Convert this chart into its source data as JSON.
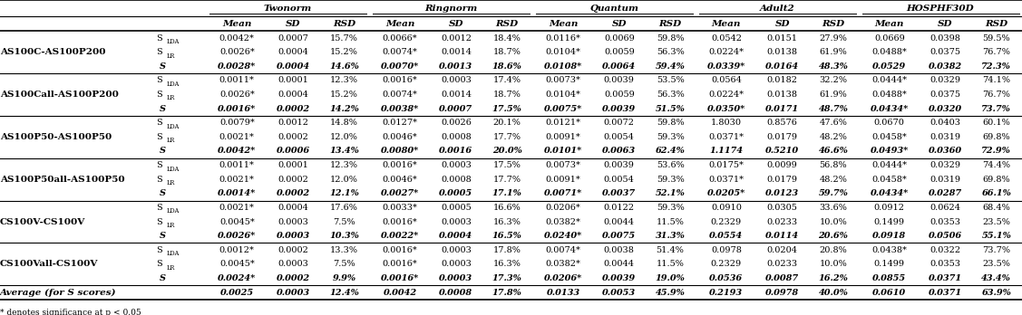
{
  "col_groups": [
    "Twonorm",
    "Ringnorm",
    "Quantum",
    "Adult2",
    "HOSPHF30D"
  ],
  "sub_cols": [
    "Mean",
    "SD",
    "RSD"
  ],
  "row_groups": [
    "AS100C-AS100P200",
    "AS100Call-AS100P200",
    "AS100P50-AS100P50",
    "AS100P50all-AS100P50",
    "CS100V-CS100V",
    "CS100Vall-CS100V"
  ],
  "data": {
    "AS100C-AS100P200": {
      "S_LDA": [
        "0.0042*",
        "0.0007",
        "15.7%",
        "0.0066*",
        "0.0012",
        "18.4%",
        "0.0116*",
        "0.0069",
        "59.8%",
        "0.0542",
        "0.0151",
        "27.9%",
        "0.0669",
        "0.0398",
        "59.5%"
      ],
      "S_LR": [
        "0.0026*",
        "0.0004",
        "15.2%",
        "0.0074*",
        "0.0014",
        "18.7%",
        "0.0104*",
        "0.0059",
        "56.3%",
        "0.0224*",
        "0.0138",
        "61.9%",
        "0.0488*",
        "0.0375",
        "76.7%"
      ],
      "S": [
        "0.0028*",
        "0.0004",
        "14.6%",
        "0.0070*",
        "0.0013",
        "18.6%",
        "0.0108*",
        "0.0064",
        "59.4%",
        "0.0339*",
        "0.0164",
        "48.3%",
        "0.0529",
        "0.0382",
        "72.3%"
      ]
    },
    "AS100Call-AS100P200": {
      "S_LDA": [
        "0.0011*",
        "0.0001",
        "12.3%",
        "0.0016*",
        "0.0003",
        "17.4%",
        "0.0073*",
        "0.0039",
        "53.5%",
        "0.0564",
        "0.0182",
        "32.2%",
        "0.0444*",
        "0.0329",
        "74.1%"
      ],
      "S_LR": [
        "0.0026*",
        "0.0004",
        "15.2%",
        "0.0074*",
        "0.0014",
        "18.7%",
        "0.0104*",
        "0.0059",
        "56.3%",
        "0.0224*",
        "0.0138",
        "61.9%",
        "0.0488*",
        "0.0375",
        "76.7%"
      ],
      "S": [
        "0.0016*",
        "0.0002",
        "14.2%",
        "0.0038*",
        "0.0007",
        "17.5%",
        "0.0075*",
        "0.0039",
        "51.5%",
        "0.0350*",
        "0.0171",
        "48.7%",
        "0.0434*",
        "0.0320",
        "73.7%"
      ]
    },
    "AS100P50-AS100P50": {
      "S_LDA": [
        "0.0079*",
        "0.0012",
        "14.8%",
        "0.0127*",
        "0.0026",
        "20.1%",
        "0.0121*",
        "0.0072",
        "59.8%",
        "1.8030",
        "0.8576",
        "47.6%",
        "0.0670",
        "0.0403",
        "60.1%"
      ],
      "S_LR": [
        "0.0021*",
        "0.0002",
        "12.0%",
        "0.0046*",
        "0.0008",
        "17.7%",
        "0.0091*",
        "0.0054",
        "59.3%",
        "0.0371*",
        "0.0179",
        "48.2%",
        "0.0458*",
        "0.0319",
        "69.8%"
      ],
      "S": [
        "0.0042*",
        "0.0006",
        "13.4%",
        "0.0080*",
        "0.0016",
        "20.0%",
        "0.0101*",
        "0.0063",
        "62.4%",
        "1.1174",
        "0.5210",
        "46.6%",
        "0.0493*",
        "0.0360",
        "72.9%"
      ]
    },
    "AS100P50all-AS100P50": {
      "S_LDA": [
        "0.0011*",
        "0.0001",
        "12.3%",
        "0.0016*",
        "0.0003",
        "17.5%",
        "0.0073*",
        "0.0039",
        "53.6%",
        "0.0175*",
        "0.0099",
        "56.8%",
        "0.0444*",
        "0.0329",
        "74.4%"
      ],
      "S_LR": [
        "0.0021*",
        "0.0002",
        "12.0%",
        "0.0046*",
        "0.0008",
        "17.7%",
        "0.0091*",
        "0.0054",
        "59.3%",
        "0.0371*",
        "0.0179",
        "48.2%",
        "0.0458*",
        "0.0319",
        "69.8%"
      ],
      "S": [
        "0.0014*",
        "0.0002",
        "12.1%",
        "0.0027*",
        "0.0005",
        "17.1%",
        "0.0071*",
        "0.0037",
        "52.1%",
        "0.0205*",
        "0.0123",
        "59.7%",
        "0.0434*",
        "0.0287",
        "66.1%"
      ]
    },
    "CS100V-CS100V": {
      "S_LDA": [
        "0.0021*",
        "0.0004",
        "17.6%",
        "0.0033*",
        "0.0005",
        "16.6%",
        "0.0206*",
        "0.0122",
        "59.3%",
        "0.0910",
        "0.0305",
        "33.6%",
        "0.0912",
        "0.0624",
        "68.4%"
      ],
      "S_LR": [
        "0.0045*",
        "0.0003",
        "7.5%",
        "0.0016*",
        "0.0003",
        "16.3%",
        "0.0382*",
        "0.0044",
        "11.5%",
        "0.2329",
        "0.0233",
        "10.0%",
        "0.1499",
        "0.0353",
        "23.5%"
      ],
      "S": [
        "0.0026*",
        "0.0003",
        "10.3%",
        "0.0022*",
        "0.0004",
        "16.5%",
        "0.0240*",
        "0.0075",
        "31.3%",
        "0.0554",
        "0.0114",
        "20.6%",
        "0.0918",
        "0.0506",
        "55.1%"
      ]
    },
    "CS100Vall-CS100V": {
      "S_LDA": [
        "0.0012*",
        "0.0002",
        "13.3%",
        "0.0016*",
        "0.0003",
        "17.8%",
        "0.0074*",
        "0.0038",
        "51.4%",
        "0.0978",
        "0.0204",
        "20.8%",
        "0.0438*",
        "0.0322",
        "73.7%"
      ],
      "S_LR": [
        "0.0045*",
        "0.0003",
        "7.5%",
        "0.0016*",
        "0.0003",
        "16.3%",
        "0.0382*",
        "0.0044",
        "11.5%",
        "0.2329",
        "0.0233",
        "10.0%",
        "0.1499",
        "0.0353",
        "23.5%"
      ],
      "S": [
        "0.0024*",
        "0.0002",
        "9.9%",
        "0.0016*",
        "0.0003",
        "17.3%",
        "0.0206*",
        "0.0039",
        "19.0%",
        "0.0536",
        "0.0087",
        "16.2%",
        "0.0855",
        "0.0371",
        "43.4%"
      ]
    }
  },
  "average_row": [
    "0.0025",
    "0.0003",
    "12.4%",
    "0.0042",
    "0.0008",
    "17.8%",
    "0.0133",
    "0.0053",
    "45.9%",
    "0.2193",
    "0.0978",
    "40.0%",
    "0.0610",
    "0.0371",
    "63.9%"
  ],
  "footnote": "* denotes significance at p < 0.05"
}
